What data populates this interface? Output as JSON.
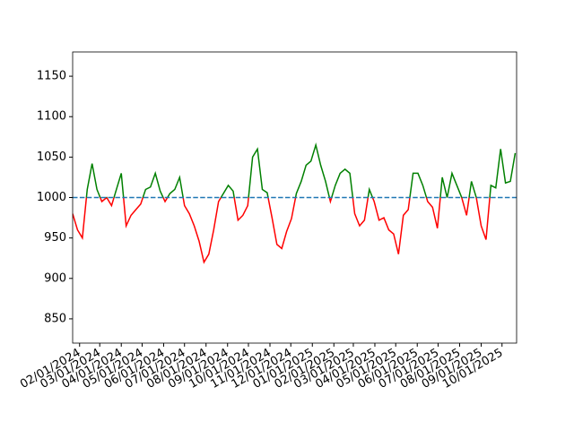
{
  "chart_data": {
    "type": "threshold-line",
    "x": [
      "2024-01-22",
      "2024-01-29",
      "2024-02-05",
      "2024-02-12",
      "2024-02-19",
      "2024-02-26",
      "2024-03-04",
      "2024-03-11",
      "2024-03-18",
      "2024-03-25",
      "2024-04-01",
      "2024-04-08",
      "2024-04-15",
      "2024-04-22",
      "2024-04-29",
      "2024-05-06",
      "2024-05-13",
      "2024-05-20",
      "2024-05-27",
      "2024-06-03",
      "2024-06-10",
      "2024-06-17",
      "2024-06-24",
      "2024-07-01",
      "2024-07-08",
      "2024-07-15",
      "2024-07-22",
      "2024-07-29",
      "2024-08-05",
      "2024-08-12",
      "2024-08-19",
      "2024-08-26",
      "2024-09-02",
      "2024-09-09",
      "2024-09-16",
      "2024-09-23",
      "2024-09-30",
      "2024-10-07",
      "2024-10-14",
      "2024-10-21",
      "2024-10-28",
      "2024-11-04",
      "2024-11-11",
      "2024-11-18",
      "2024-11-25",
      "2024-12-02",
      "2024-12-09",
      "2024-12-16",
      "2024-12-23",
      "2024-12-30",
      "2025-01-06",
      "2025-01-13",
      "2025-01-20",
      "2025-01-27",
      "2025-02-03",
      "2025-02-10",
      "2025-02-17",
      "2025-02-24",
      "2025-03-03",
      "2025-03-10",
      "2025-03-17",
      "2025-03-24",
      "2025-03-31",
      "2025-04-07",
      "2025-04-14",
      "2025-04-21",
      "2025-04-28",
      "2025-05-05",
      "2025-05-12",
      "2025-05-19",
      "2025-05-26",
      "2025-06-02",
      "2025-06-09",
      "2025-06-16",
      "2025-06-23",
      "2025-06-30",
      "2025-07-07",
      "2025-07-14",
      "2025-07-21",
      "2025-07-28",
      "2025-08-04",
      "2025-08-11",
      "2025-08-18",
      "2025-08-25",
      "2025-09-01",
      "2025-09-08",
      "2025-09-15",
      "2025-09-22",
      "2025-09-29",
      "2025-10-06",
      "2025-10-13",
      "2025-10-20"
    ],
    "values": [
      980,
      960,
      950,
      1010,
      1042,
      1010,
      995,
      1000,
      990,
      1010,
      1030,
      965,
      978,
      985,
      992,
      1010,
      1013,
      1030,
      1008,
      995,
      1005,
      1010,
      1025,
      990,
      980,
      965,
      946,
      920,
      930,
      960,
      995,
      1005,
      1015,
      1008,
      972,
      978,
      990,
      1050,
      1060,
      1010,
      1006,
      975,
      942,
      937,
      958,
      974,
      1005,
      1020,
      1040,
      1045,
      1065,
      1040,
      1020,
      995,
      1015,
      1030,
      1035,
      1030,
      980,
      965,
      972,
      1010,
      995,
      972,
      975,
      960,
      955,
      930,
      978,
      985,
      1030,
      1030,
      1015,
      995,
      988,
      962,
      1025,
      1000,
      1030,
      1015,
      1000,
      978,
      1020,
      1000,
      965,
      948,
      1015,
      1012,
      1060,
      1018,
      1020,
      1055
    ],
    "threshold": 1000,
    "threshold_color": "#1f77b4",
    "above_color": "green",
    "below_color": "red",
    "xlim": [
      "2024-01-22",
      "2025-10-22"
    ],
    "xticks": [
      {
        "value": "2024-02-01",
        "label": "02/01/2024"
      },
      {
        "value": "2024-03-01",
        "label": "03/01/2024"
      },
      {
        "value": "2024-04-01",
        "label": "04/01/2024"
      },
      {
        "value": "2024-05-01",
        "label": "05/01/2024"
      },
      {
        "value": "2024-06-01",
        "label": "06/01/2024"
      },
      {
        "value": "2024-07-01",
        "label": "07/01/2024"
      },
      {
        "value": "2024-08-01",
        "label": "08/01/2024"
      },
      {
        "value": "2024-09-01",
        "label": "09/01/2024"
      },
      {
        "value": "2024-10-01",
        "label": "10/01/2024"
      },
      {
        "value": "2024-11-01",
        "label": "11/01/2024"
      },
      {
        "value": "2024-12-01",
        "label": "12/01/2024"
      },
      {
        "value": "2025-01-01",
        "label": "01/01/2025"
      },
      {
        "value": "2025-02-01",
        "label": "02/01/2025"
      },
      {
        "value": "2025-03-01",
        "label": "03/01/2025"
      },
      {
        "value": "2025-04-01",
        "label": "04/01/2025"
      },
      {
        "value": "2025-05-01",
        "label": "05/01/2025"
      },
      {
        "value": "2025-06-01",
        "label": "06/01/2025"
      },
      {
        "value": "2025-07-01",
        "label": "07/01/2025"
      },
      {
        "value": "2025-08-01",
        "label": "08/01/2025"
      },
      {
        "value": "2025-09-01",
        "label": "09/01/2025"
      },
      {
        "value": "2025-10-01",
        "label": "10/01/2025"
      }
    ],
    "ylim": [
      820,
      1180
    ],
    "yticks": [
      850,
      900,
      950,
      1000,
      1050,
      1100,
      1150
    ]
  }
}
